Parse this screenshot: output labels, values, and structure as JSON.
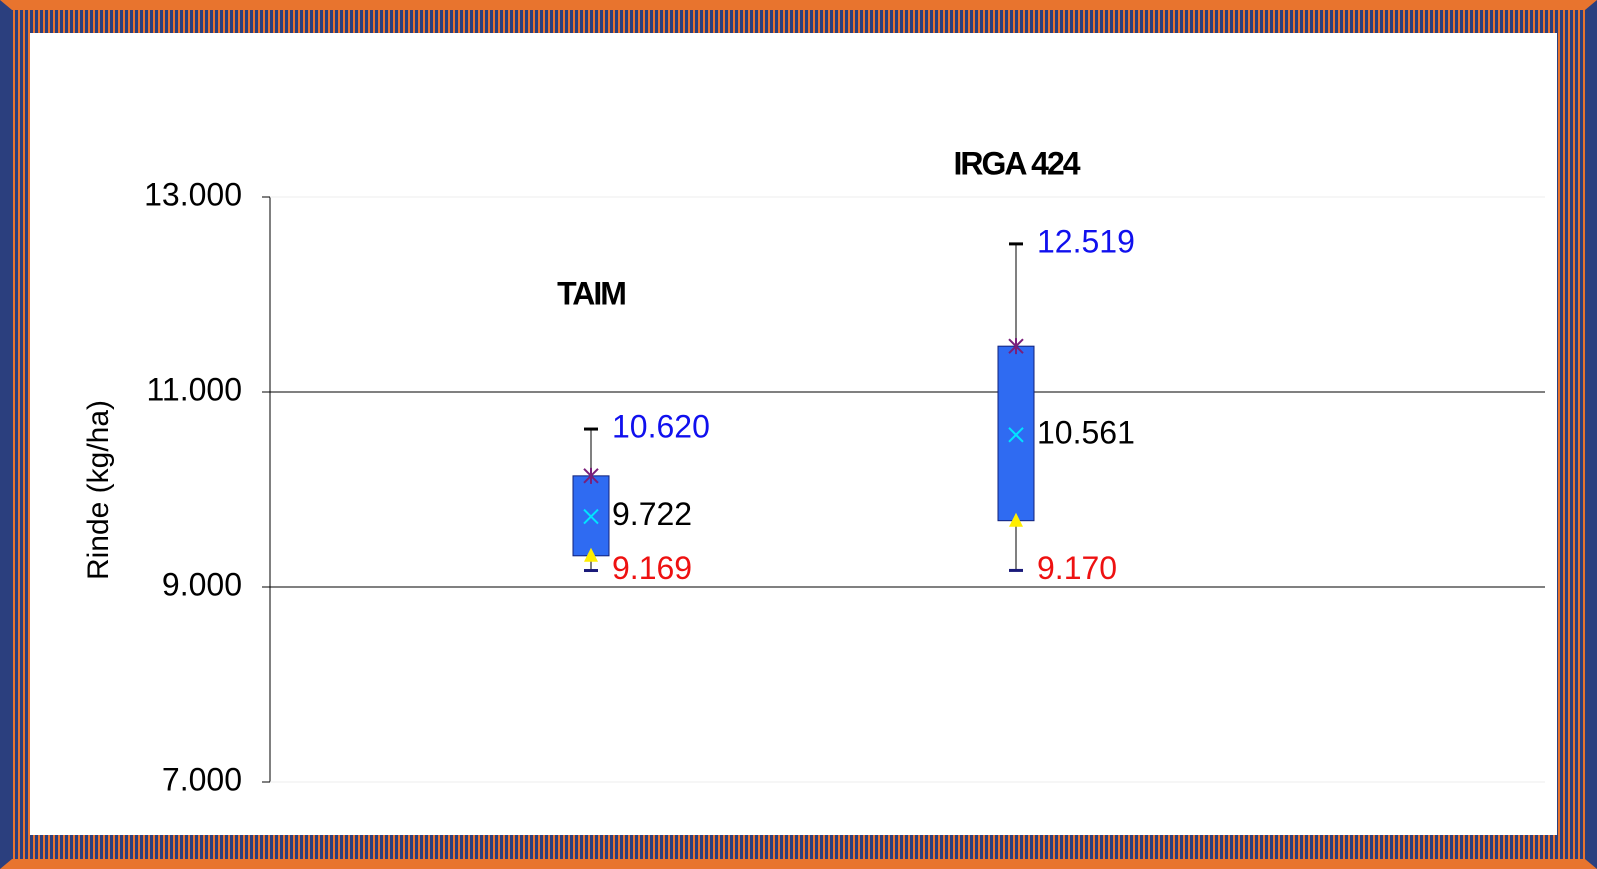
{
  "chart_data": {
    "type": "box",
    "ylabel": "Rinde (kg/ha)",
    "ylim": [
      7000,
      13000
    ],
    "yticks": [
      {
        "value": 7000,
        "label": "7.000"
      },
      {
        "value": 9000,
        "label": "9.000"
      },
      {
        "value": 11000,
        "label": "11.000"
      },
      {
        "value": 13000,
        "label": "13.000"
      }
    ],
    "grid": true,
    "box_color": "#2f6bf2",
    "mean_color": "#00e5ff",
    "q1_color": "#ffee00",
    "q3_color": "#7a1f7a",
    "max_label_color": "#1010ee",
    "min_label_color": "#ee1111",
    "mean_label_color": "#000000",
    "boxes": [
      {
        "name": "TAIM",
        "min": 9169,
        "q1": 9320,
        "q3": 10140,
        "max": 10620,
        "mean": 9722,
        "value_labels": {
          "min": "9.169",
          "max": "10.620",
          "mean": "9.722"
        }
      },
      {
        "name": "IRGA 424",
        "min": 9170,
        "q1": 9680,
        "q3": 11470,
        "max": 12519,
        "mean": 10561,
        "value_labels": {
          "min": "9.170",
          "max": "12.519",
          "mean": "10.561"
        }
      }
    ]
  }
}
